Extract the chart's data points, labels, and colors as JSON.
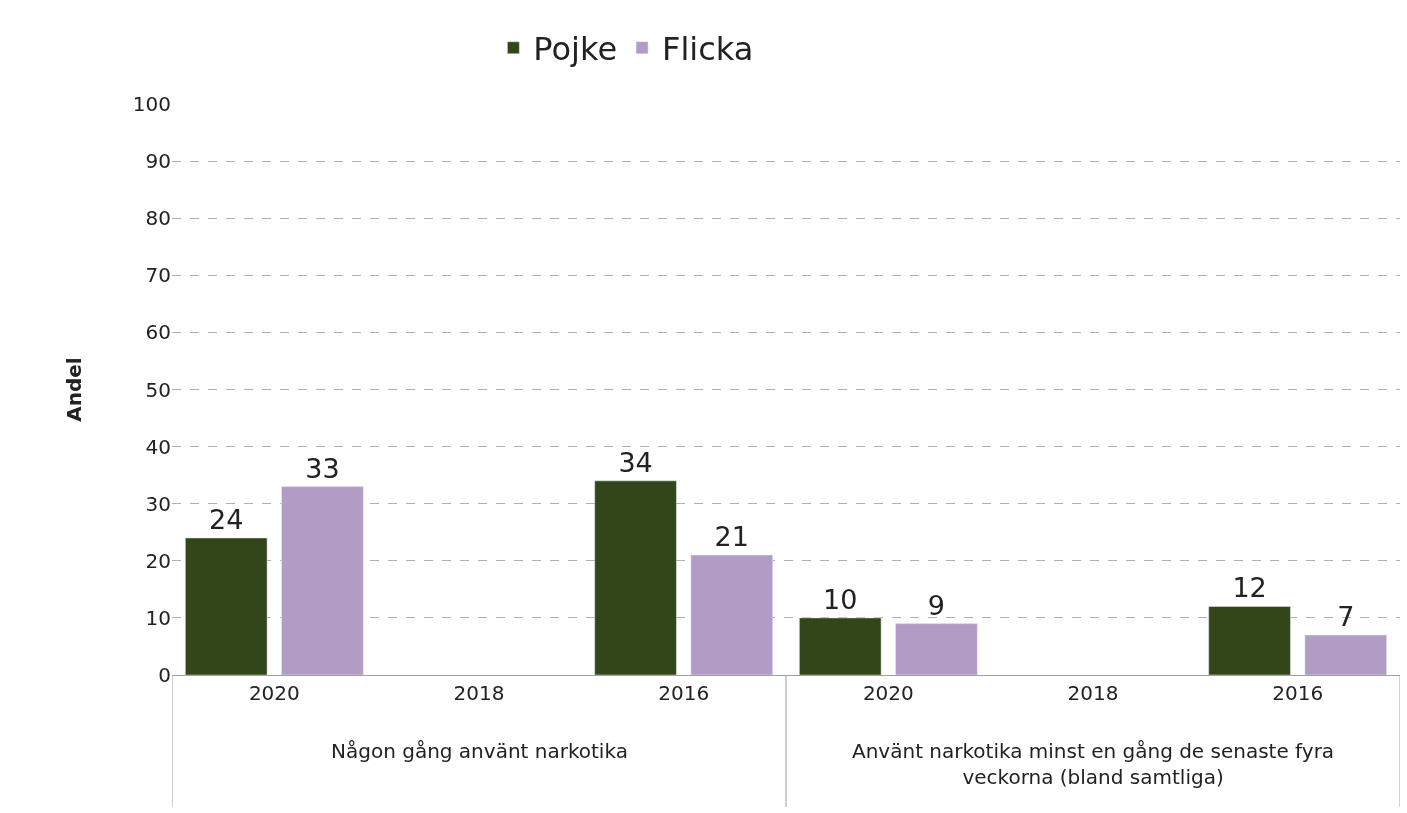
{
  "chart_data": {
    "type": "bar",
    "ylabel": "Andel",
    "categories": [
      "2020",
      "2018",
      "2016",
      "2020",
      "2018",
      "2016"
    ],
    "series": [
      {
        "name": "Pojke",
        "color": "#334619",
        "values": [
          24,
          null,
          34,
          10,
          null,
          12
        ]
      },
      {
        "name": "Flicka",
        "color": "#b09cc4",
        "values": [
          33,
          null,
          21,
          9,
          null,
          7
        ]
      }
    ],
    "annotations": [
      "Någon gång använt narkotika",
      "Använt narkotika minst en gång de senaste fyra veckorna (bland samtliga)"
    ],
    "ylim": [
      0,
      100
    ],
    "yticks": [
      0,
      10,
      20,
      30,
      40,
      50,
      60,
      70,
      80,
      90,
      100
    ],
    "grid": "y",
    "legend": "top",
    "data_labels": true
  }
}
